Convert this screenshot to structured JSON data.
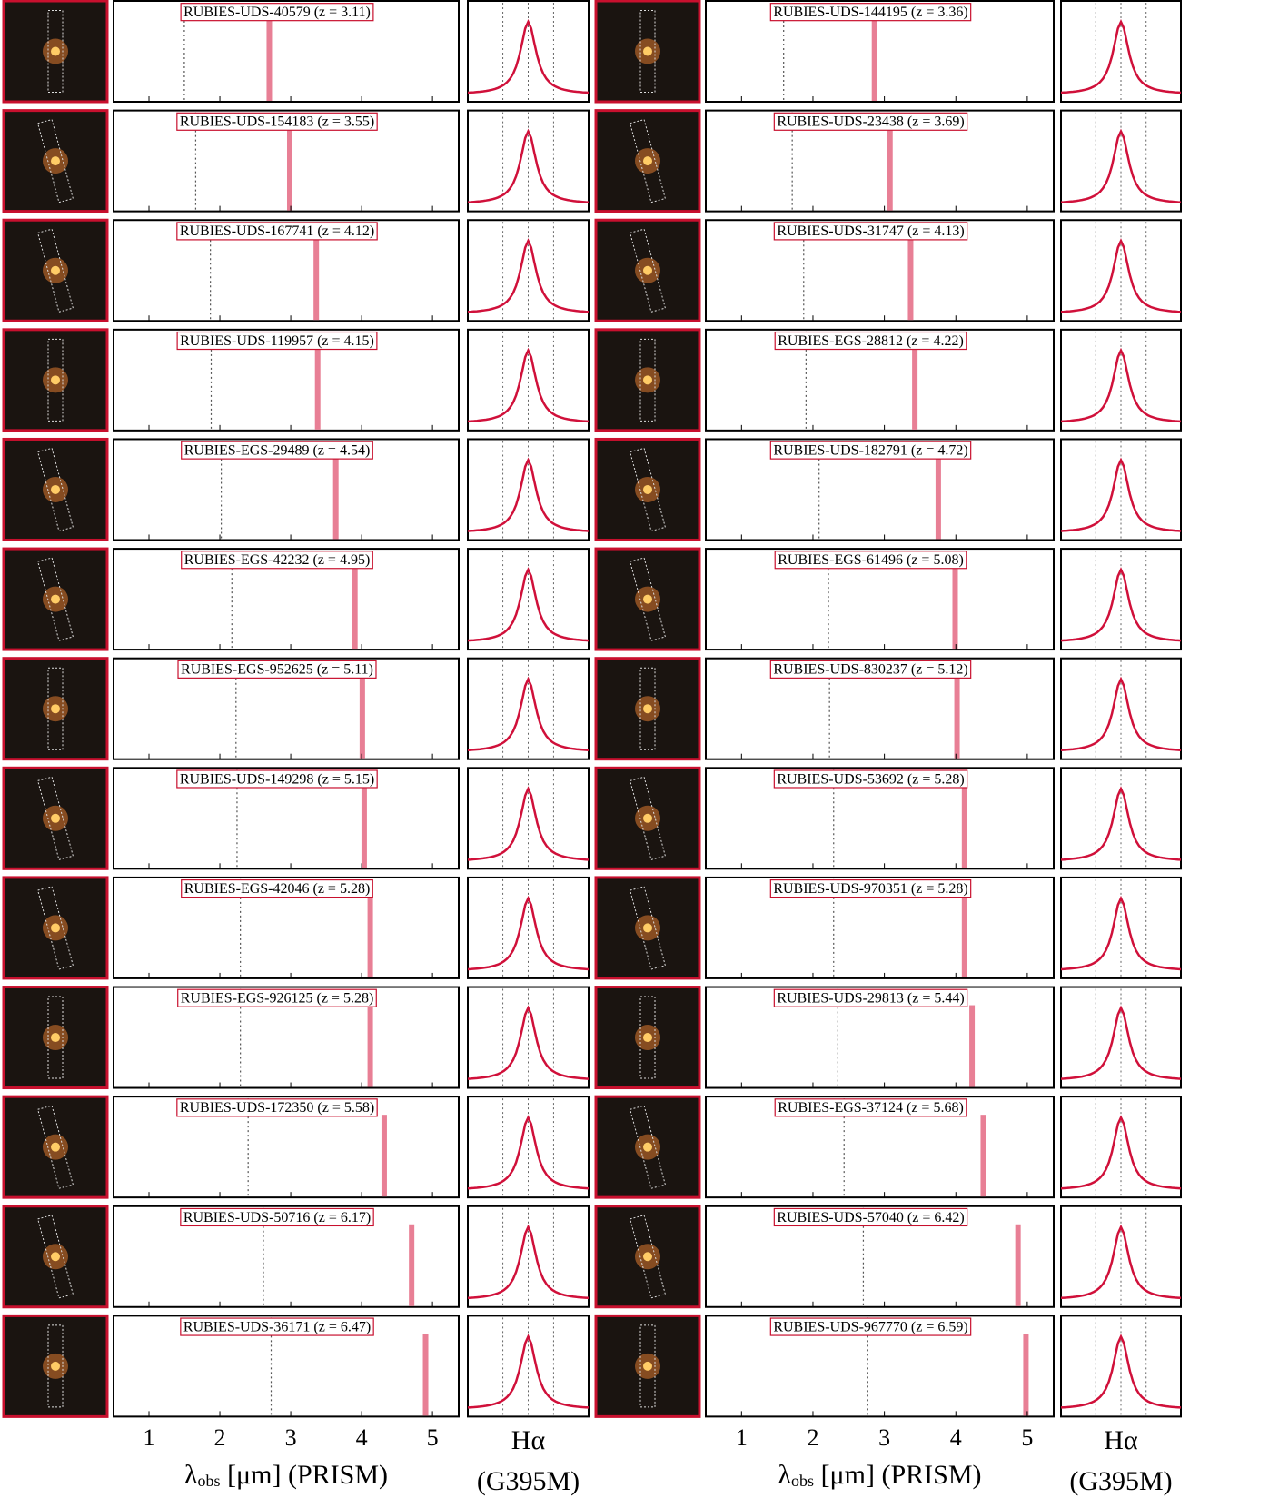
{
  "figure": {
    "columns": [
      [
        {
          "name": "RUBIES-UDS-40579",
          "redshift_label": "(z = 3.11)",
          "z": 3.11
        },
        {
          "name": "RUBIES-UDS-154183",
          "redshift_label": "(z = 3.55)",
          "z": 3.55
        },
        {
          "name": "RUBIES-UDS-167741",
          "redshift_label": "(z = 4.12)",
          "z": 4.12
        },
        {
          "name": "RUBIES-UDS-119957",
          "redshift_label": "(z = 4.15)",
          "z": 4.15
        },
        {
          "name": "RUBIES-EGS-29489",
          "redshift_label": "(z = 4.54)",
          "z": 4.54
        },
        {
          "name": "RUBIES-EGS-42232",
          "redshift_label": "(z = 4.95)",
          "z": 4.95
        },
        {
          "name": "RUBIES-EGS-952625",
          "redshift_label": "(z = 5.11)",
          "z": 5.11
        },
        {
          "name": "RUBIES-UDS-149298",
          "redshift_label": "(z = 5.15)",
          "z": 5.15
        },
        {
          "name": "RUBIES-EGS-42046",
          "redshift_label": "(z = 5.28)",
          "z": 5.28
        },
        {
          "name": "RUBIES-EGS-926125",
          "redshift_label": "(z = 5.28)",
          "z": 5.28
        },
        {
          "name": "RUBIES-UDS-172350",
          "redshift_label": "(z = 5.58)",
          "z": 5.58
        },
        {
          "name": "RUBIES-UDS-50716",
          "redshift_label": "(z = 6.17)",
          "z": 6.17
        },
        {
          "name": "RUBIES-UDS-36171",
          "redshift_label": "(z = 6.47)",
          "z": 6.47
        }
      ],
      [
        {
          "name": "RUBIES-UDS-144195",
          "redshift_label": "(z = 3.36)",
          "z": 3.36
        },
        {
          "name": "RUBIES-UDS-23438",
          "redshift_label": "(z = 3.69)",
          "z": 3.69
        },
        {
          "name": "RUBIES-UDS-31747",
          "redshift_label": "(z = 4.13)",
          "z": 4.13
        },
        {
          "name": "RUBIES-EGS-28812",
          "redshift_label": "(z = 4.22)",
          "z": 4.22
        },
        {
          "name": "RUBIES-UDS-182791",
          "redshift_label": "(z = 4.72)",
          "z": 4.72
        },
        {
          "name": "RUBIES-EGS-61496",
          "redshift_label": "(z = 5.08)",
          "z": 5.08
        },
        {
          "name": "RUBIES-UDS-830237",
          "redshift_label": "(z = 5.12)",
          "z": 5.12
        },
        {
          "name": "RUBIES-UDS-53692",
          "redshift_label": "(z = 5.28)",
          "z": 5.28
        },
        {
          "name": "RUBIES-UDS-970351",
          "redshift_label": "(z = 5.28)",
          "z": 5.28
        },
        {
          "name": "RUBIES-UDS-29813",
          "redshift_label": "(z = 5.44)",
          "z": 5.44
        },
        {
          "name": "RUBIES-EGS-37124",
          "redshift_label": "(z = 5.68)",
          "z": 5.68
        },
        {
          "name": "RUBIES-UDS-57040",
          "redshift_label": "(z = 6.42)",
          "z": 6.42
        },
        {
          "name": "RUBIES-UDS-967770",
          "redshift_label": "(z = 6.59)",
          "z": 6.59
        }
      ]
    ],
    "xlim": [
      0.5,
      5.37
    ],
    "xticks": [
      1,
      2,
      3,
      4,
      5
    ],
    "x_label": {
      "symbol": "λ",
      "subscript": "obs",
      "rest": " [μm] (PRISM)"
    },
    "line_label": "Hα",
    "grating_label": "(G395M)"
  }
}
